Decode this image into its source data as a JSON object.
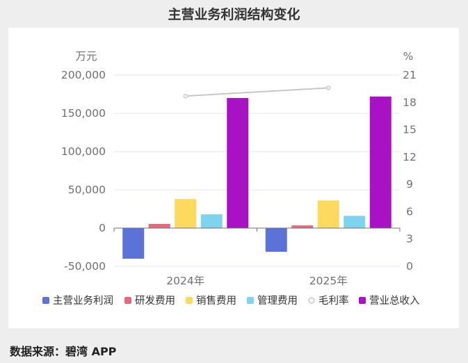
{
  "title": "主营业务利润结构变化",
  "source": "数据来源：碧湾 APP",
  "chart_data": {
    "type": "bar",
    "categories": [
      "2024年",
      "2025年"
    ],
    "y_left": {
      "unit": "万元",
      "min": -50000,
      "max": 200000,
      "ticks": [
        "200,000",
        "150,000",
        "100,000",
        "50,000",
        "0",
        "-50,000"
      ],
      "tick_values": [
        200000,
        150000,
        100000,
        50000,
        0,
        -50000
      ]
    },
    "y_right": {
      "unit": "%",
      "min": 0,
      "max": 21,
      "ticks": [
        "21",
        "18",
        "15",
        "12",
        "9",
        "6",
        "3",
        "0"
      ],
      "tick_values": [
        21,
        18,
        15,
        12,
        9,
        6,
        3,
        0
      ]
    },
    "series": [
      {
        "name": "主营业务利润",
        "type": "bar",
        "color": "#5b73d6",
        "values": [
          -40000,
          -31000
        ]
      },
      {
        "name": "研发费用",
        "type": "bar",
        "color": "#e8697a",
        "values": [
          5500,
          3500
        ]
      },
      {
        "name": "销售费用",
        "type": "bar",
        "color": "#fdd95e",
        "values": [
          38000,
          36000
        ]
      },
      {
        "name": "管理费用",
        "type": "bar",
        "color": "#7fd3ee",
        "values": [
          18000,
          16000
        ]
      },
      {
        "name": "毛利率",
        "type": "line",
        "axis": "right",
        "color": "#c8c8c8",
        "values": [
          18.7,
          19.6
        ]
      },
      {
        "name": "营业总收入",
        "type": "bar",
        "color": "#a812c4",
        "values": [
          170000,
          172000
        ]
      }
    ],
    "grid": true,
    "legend_position": "bottom"
  }
}
